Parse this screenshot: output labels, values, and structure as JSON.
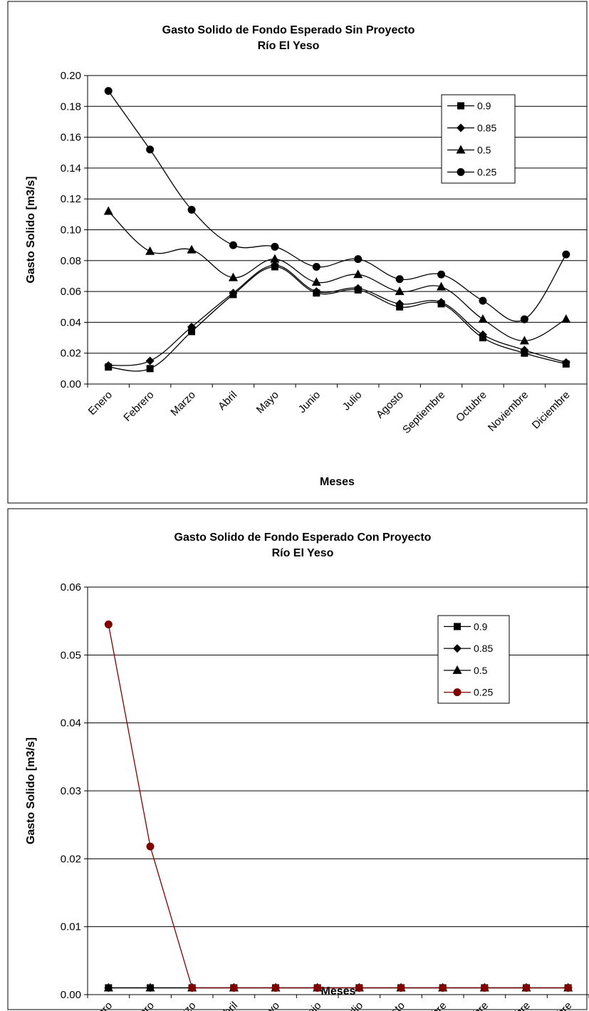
{
  "chart_data": [
    {
      "type": "line",
      "title": "Gasto Solido de Fondo Esperado Sin Proyecto",
      "subtitle": "Río El Yeso",
      "xlabel": "Meses",
      "ylabel": "Gasto Solido [m3/s]",
      "ylim": [
        0,
        0.2
      ],
      "yticks": [
        "0.00",
        "0.02",
        "0.04",
        "0.06",
        "0.08",
        "0.10",
        "0.12",
        "0.14",
        "0.16",
        "0.18",
        "0.20"
      ],
      "grid": true,
      "legend_position": "top-right",
      "smooth": true,
      "categories": [
        "Enero",
        "Febrero",
        "Marzo",
        "Abril",
        "Mayo",
        "Junio",
        "Julio",
        "Agosto",
        "Septiembre",
        "Octubre",
        "Noviembre",
        "Diciembre"
      ],
      "series": [
        {
          "name": "0.9",
          "marker": "square",
          "color": "#000000",
          "values": [
            0.011,
            0.01,
            0.034,
            0.058,
            0.076,
            0.059,
            0.061,
            0.05,
            0.052,
            0.03,
            0.02,
            0.013
          ]
        },
        {
          "name": "0.85",
          "marker": "diamond",
          "color": "#000000",
          "values": [
            0.012,
            0.015,
            0.037,
            0.059,
            0.077,
            0.06,
            0.062,
            0.052,
            0.053,
            0.032,
            0.022,
            0.014
          ]
        },
        {
          "name": "0.5",
          "marker": "triangle",
          "color": "#000000",
          "values": [
            0.112,
            0.086,
            0.087,
            0.069,
            0.081,
            0.066,
            0.071,
            0.06,
            0.063,
            0.042,
            0.028,
            0.042
          ]
        },
        {
          "name": "0.25",
          "marker": "circle",
          "color": "#000000",
          "values": [
            0.19,
            0.152,
            0.113,
            0.09,
            0.089,
            0.076,
            0.081,
            0.068,
            0.071,
            0.054,
            0.042,
            0.084
          ]
        }
      ]
    },
    {
      "type": "line",
      "title": "Gasto Solido de Fondo Esperado Con Proyecto",
      "subtitle": "Río El Yeso",
      "xlabel": "Meses",
      "ylabel": "Gasto Solido [m3/s]",
      "ylim": [
        0,
        0.06
      ],
      "yticks": [
        "0.00",
        "0.01",
        "0.02",
        "0.03",
        "0.04",
        "0.05",
        "0.06"
      ],
      "grid": true,
      "legend_position": "top-right",
      "smooth": false,
      "categories": [
        "Enero",
        "Febrero",
        "Marzo",
        "Abril",
        "Mayo",
        "Junio",
        "Julio",
        "Agosto",
        "Septiembre",
        "Octubre",
        "Noviembre",
        "Diciembre"
      ],
      "series": [
        {
          "name": "0.9",
          "marker": "square",
          "color": "#000000",
          "values": [
            0.001,
            0.001,
            0.001,
            0.001,
            0.001,
            0.001,
            0.001,
            0.001,
            0.001,
            0.001,
            0.001,
            0.001
          ]
        },
        {
          "name": "0.85",
          "marker": "diamond",
          "color": "#000000",
          "values": [
            0.001,
            0.001,
            0.001,
            0.001,
            0.001,
            0.001,
            0.001,
            0.001,
            0.001,
            0.001,
            0.001,
            0.001
          ]
        },
        {
          "name": "0.5",
          "marker": "triangle",
          "color": "#000000",
          "values": [
            0.001,
            0.001,
            0.001,
            0.001,
            0.001,
            0.001,
            0.001,
            0.001,
            0.001,
            0.001,
            0.001,
            0.001
          ]
        },
        {
          "name": "0.25",
          "marker": "circle",
          "color": "#800000",
          "values": [
            0.0545,
            0.0218,
            0.001,
            0.001,
            0.001,
            0.001,
            0.001,
            0.001,
            0.001,
            0.001,
            0.001,
            0.001
          ]
        }
      ]
    }
  ]
}
